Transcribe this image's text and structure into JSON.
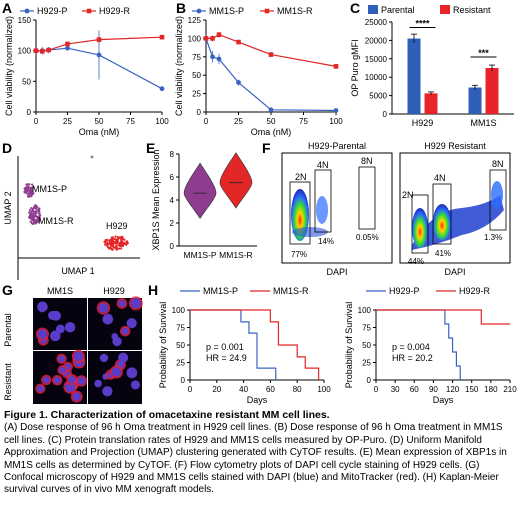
{
  "panels": {
    "A": {
      "letter": "A"
    },
    "B": {
      "letter": "B"
    },
    "C": {
      "letter": "C"
    },
    "D": {
      "letter": "D"
    },
    "E": {
      "letter": "E"
    },
    "F": {
      "letter": "F"
    },
    "G": {
      "letter": "G"
    },
    "H": {
      "letter": "H"
    }
  },
  "colors": {
    "blue": "#3a63c4",
    "red": "#e32626",
    "purple": "#8e3d8e",
    "parental_bar": "#2f5fb8",
    "resistant_bar": "#e8242a"
  },
  "chart_data": [
    {
      "id": "A",
      "type": "line",
      "xlabel": "Oma (nM)",
      "ylabel": "Cell viability (normalized)",
      "xlim": [
        0,
        100
      ],
      "ylim": [
        0,
        150
      ],
      "xticks": [
        0,
        25,
        50,
        75,
        100
      ],
      "yticks": [
        0,
        50,
        100,
        150
      ],
      "series": [
        {
          "name": "H929-P",
          "color": "#3a63c4",
          "x": [
            0,
            5,
            10,
            25,
            50,
            100
          ],
          "y": [
            100,
            100,
            101,
            104,
            93,
            38
          ],
          "err": [
            4,
            6,
            5,
            4,
            40,
            3
          ]
        },
        {
          "name": "H929-R",
          "color": "#e32626",
          "x": [
            0,
            5,
            10,
            25,
            50,
            100
          ],
          "y": [
            100,
            99,
            101,
            111,
            118,
            122
          ],
          "err": [
            3,
            3,
            3,
            4,
            5,
            3
          ]
        }
      ]
    },
    {
      "id": "B",
      "type": "line",
      "xlabel": "Oma (nM)",
      "ylabel": "Cell viability (normalized)",
      "xlim": [
        0,
        100
      ],
      "ylim": [
        0,
        125
      ],
      "xticks": [
        0,
        25,
        50,
        75,
        100
      ],
      "yticks": [
        0,
        25,
        50,
        75,
        100,
        125
      ],
      "series": [
        {
          "name": "MM1S-P",
          "color": "#3a63c4",
          "x": [
            0,
            5,
            10,
            25,
            50,
            100
          ],
          "y": [
            100,
            75,
            72,
            40,
            3,
            2
          ],
          "err": [
            4,
            8,
            7,
            4,
            2,
            1
          ]
        },
        {
          "name": "MM1S-R",
          "color": "#e32626",
          "x": [
            0,
            5,
            10,
            25,
            50,
            100
          ],
          "y": [
            100,
            100,
            105,
            95,
            78,
            62
          ],
          "err": [
            3,
            4,
            4,
            3,
            3,
            3
          ]
        }
      ]
    },
    {
      "id": "C",
      "type": "bar",
      "ylabel": "OP Puro gMFI",
      "categories": [
        "H929",
        "MM1S"
      ],
      "ylim": [
        0,
        25000
      ],
      "yticks": [
        0,
        5000,
        10000,
        15000,
        20000,
        25000
      ],
      "series": [
        {
          "name": "Parental",
          "color": "#2f5fb8",
          "values": [
            20500,
            7200
          ],
          "err": [
            1200,
            600
          ]
        },
        {
          "name": "Resistant",
          "color": "#e8242a",
          "values": [
            5600,
            12500
          ],
          "err": [
            400,
            800
          ]
        }
      ],
      "significance": [
        "****",
        "***"
      ]
    },
    {
      "id": "E",
      "type": "violin",
      "ylabel": "XBP1S Mean Expression",
      "categories": [
        "MM1S-P",
        "MM1S-R"
      ],
      "ylim": [
        0,
        8
      ],
      "yticks": [
        0,
        2,
        4,
        6,
        8
      ],
      "medians": [
        4.6,
        5.5
      ]
    },
    {
      "id": "H1",
      "type": "line",
      "xlabel": "Days",
      "ylabel": "Probability of Survival",
      "xlim": [
        0,
        100
      ],
      "ylim": [
        0,
        100
      ],
      "xticks": [
        0,
        20,
        40,
        60,
        80,
        100
      ],
      "yticks": [
        0,
        25,
        50,
        75,
        100
      ],
      "annotation": [
        "p = 0.001",
        "HR = 24.9"
      ],
      "series": [
        {
          "name": "MM1S-P",
          "color": "#3a63c4",
          "x": [
            0,
            38,
            38,
            44,
            44,
            50,
            50,
            64,
            64
          ],
          "y": [
            100,
            100,
            83,
            83,
            67,
            67,
            17,
            17,
            0
          ]
        },
        {
          "name": "MM1S-R",
          "color": "#e32626",
          "x": [
            0,
            60,
            60,
            66,
            66,
            80,
            80,
            86,
            86,
            96,
            96
          ],
          "y": [
            100,
            100,
            83,
            83,
            50,
            50,
            33,
            33,
            17,
            17,
            0
          ]
        }
      ]
    },
    {
      "id": "H2",
      "type": "line",
      "xlabel": "Days",
      "ylabel": "Probability of Survival",
      "xlim": [
        0,
        210
      ],
      "ylim": [
        0,
        100
      ],
      "xticks": [
        0,
        30,
        60,
        90,
        120,
        150,
        180,
        210
      ],
      "yticks": [
        0,
        25,
        50,
        75,
        100
      ],
      "annotation": [
        "p = 0.004",
        "HR = 20.2"
      ],
      "series": [
        {
          "name": "H929-P",
          "color": "#3a63c4",
          "x": [
            0,
            108,
            108,
            114,
            114,
            120,
            120,
            126,
            126,
            132,
            132
          ],
          "y": [
            100,
            100,
            80,
            80,
            60,
            60,
            40,
            40,
            20,
            20,
            0
          ]
        },
        {
          "name": "H929-R",
          "color": "#e32626",
          "x": [
            0,
            165,
            165,
            210
          ],
          "y": [
            100,
            100,
            80,
            80
          ]
        }
      ]
    }
  ],
  "umap": {
    "xlabel": "UMAP 1",
    "ylabel": "UMAP 2",
    "labels": [
      "MM1S-P",
      "MM1S-R",
      "H929"
    ]
  },
  "flow": {
    "parental_title": "H929-Parental",
    "resistant_title": "H929 Resistant",
    "xlabel": "DAPI",
    "parental": {
      "g2n": "2N",
      "g4n": "4N",
      "g8n": "8N",
      "p2n": "77%",
      "p4n": "14%",
      "p8n": "0.05%"
    },
    "resistant": {
      "g2n": "2N",
      "g4n": "4N",
      "g8n": "8N",
      "p2n": "44%",
      "p4n": "41%",
      "p8n": "1.3%"
    }
  },
  "micro": {
    "col1": "MM1S",
    "col2": "H929",
    "row1": "Parental",
    "row2": "Resistant"
  },
  "caption": {
    "title": "Figure 1. Characterization of omacetaxine resistant MM cell lines.",
    "body": "(A) Dose response of 96 h Oma treatment in H929 cell lines. (B) Dose response of 96 h Oma treatment in MM1S cell lines. (C) Protein translation rates of H929 and MM1S cells measured by OP-Puro. (D) Uniform Manifold Approximation and Projection (UMAP) clustering generated with CyTOF results. (E) Mean expression of XBP1s in MM1S cells as determined by CyTOF. (F) Flow cytometry plots of DAPI cell cycle staining of H929 cells. (G) Confocal microscopy of H929 and MM1S cells stained with DAPI (blue) and MitoTracker (red). (H) Kaplan-Meier survival curves of in vivo MM xenograft models."
  }
}
